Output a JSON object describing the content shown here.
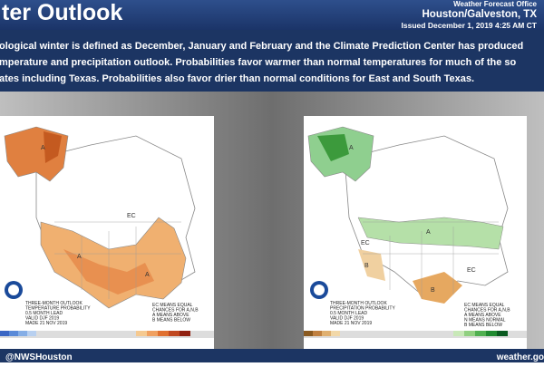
{
  "header": {
    "title": "ter Outlook",
    "office": "Weather Forecast Office",
    "location": "Houston/Galveston, TX",
    "issued": "Issued December 1, 2019 4:25 AM CT"
  },
  "body": {
    "lines": [
      "ological winter is defined as December, January and February and the Climate Prediction Center has produced",
      "mperature and precipitation outlook. Probabilities favor warmer than normal temperatures for much of the so",
      "ates including Texas. Probabilities also favor drier than normal conditions for East and South Texas."
    ]
  },
  "maps": [
    {
      "caption": [
        "THREE-MONTH OUTLOOK",
        "TEMPERATURE PROBABILITY",
        "0.5 MONTH LEAD",
        "VALID DJF 2019",
        "MADE 21 NOV 2019"
      ],
      "legend": [
        "EC MEANS EQUAL",
        "CHANCES FOR A,N,B",
        "A MEANS ABOVE",
        "B MEANS BELOW"
      ],
      "labels": [
        "A",
        "A",
        "A",
        "EC"
      ]
    },
    {
      "caption": [
        "THREE-MONTH OUTLOOK",
        "PRECIPITATION PROBABILITY",
        "0.5 MONTH LEAD",
        "VALID DJF 2019",
        "MADE 21 NOV 2019"
      ],
      "legend": [
        "EC MEANS EQUAL",
        "CHANCES FOR A,N,B",
        "A MEANS ABOVE",
        "N MEANS NORMAL",
        "B MEANS BELOW"
      ],
      "labels": [
        "A",
        "A",
        "EC",
        "EC",
        "B",
        "B"
      ]
    }
  ],
  "footer": {
    "handle": "@NWSHouston",
    "site": "weather.go"
  }
}
